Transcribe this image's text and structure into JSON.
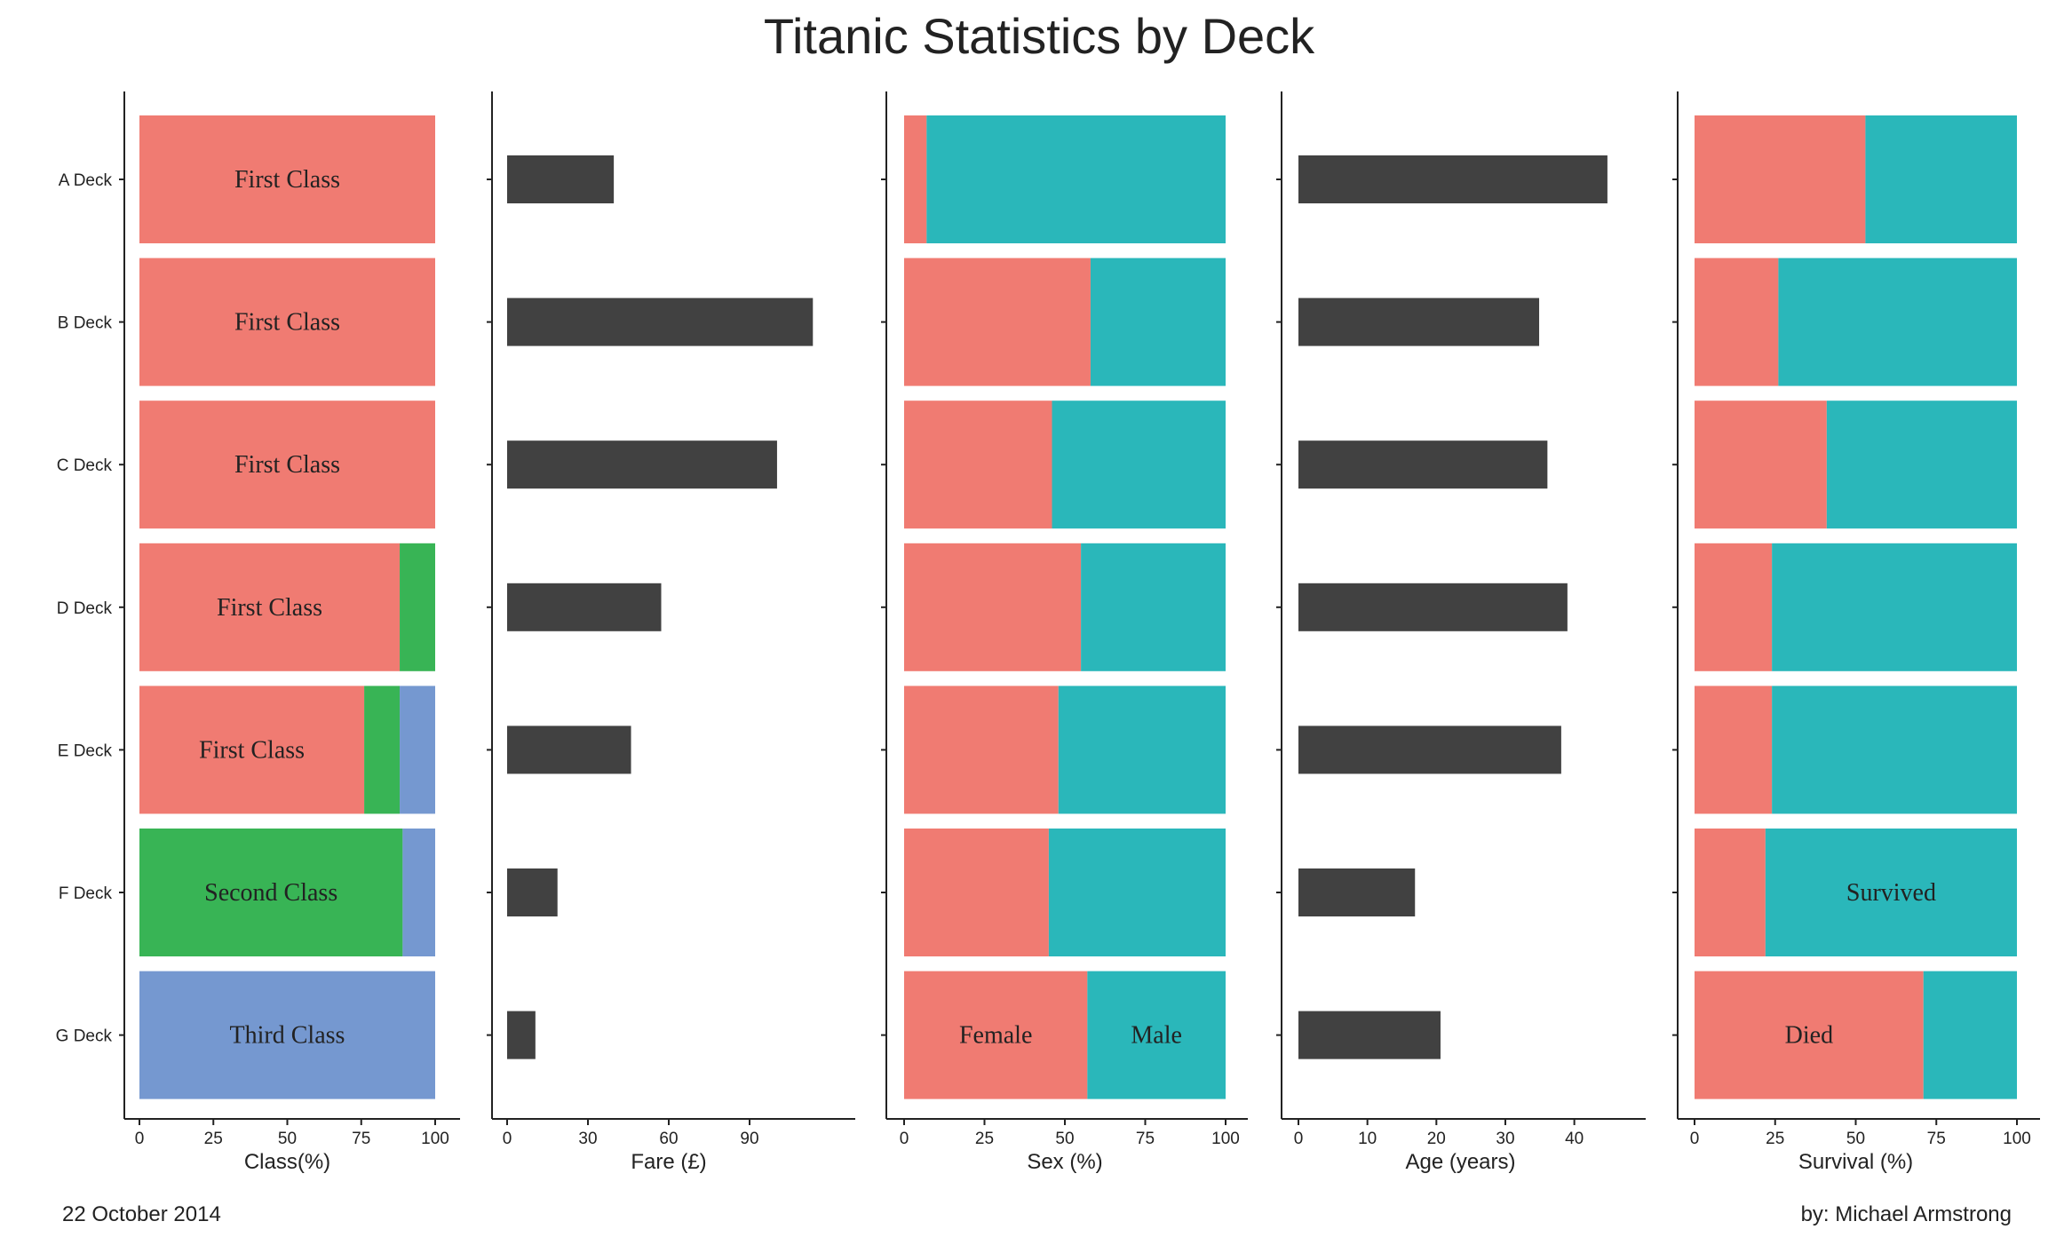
{
  "title": "Titanic Statistics by Deck",
  "footer": {
    "date": "22 October 2014",
    "author": "by: Michael Armstrong"
  },
  "decks": [
    "A Deck",
    "B Deck",
    "C Deck",
    "D Deck",
    "E Deck",
    "F Deck",
    "G Deck"
  ],
  "colors": {
    "red": "#F07B72",
    "green": "#38B455",
    "blue": "#7598D0",
    "teal": "#2AB7BA",
    "dark": "#414141"
  },
  "chart_data": [
    {
      "id": "class",
      "type": "bar",
      "stacked": true,
      "orientation": "horizontal",
      "xlabel": "Class(%)",
      "xlim": [
        0,
        100
      ],
      "xticks": [
        "0",
        "25",
        "50",
        "75",
        "100"
      ],
      "categories": [
        "A Deck",
        "B Deck",
        "C Deck",
        "D Deck",
        "E Deck",
        "F Deck",
        "G Deck"
      ],
      "series": [
        {
          "color": "#F07B72",
          "values": [
            100,
            100,
            100,
            88,
            76,
            0,
            0
          ]
        },
        {
          "color": "#38B455",
          "values": [
            0,
            0,
            0,
            12,
            12,
            89,
            0
          ]
        },
        {
          "color": "#7598D0",
          "values": [
            0,
            0,
            0,
            0,
            12,
            11,
            100
          ]
        }
      ],
      "bar_labels": [
        {
          "row": 0,
          "series": 0,
          "text": "First Class"
        },
        {
          "row": 1,
          "series": 0,
          "text": "First Class"
        },
        {
          "row": 2,
          "series": 0,
          "text": "First Class"
        },
        {
          "row": 3,
          "series": 0,
          "text": "First Class"
        },
        {
          "row": 4,
          "series": 0,
          "text": "First Class"
        },
        {
          "row": 5,
          "series": 1,
          "text": "Second Class"
        },
        {
          "row": 6,
          "series": 2,
          "text": "Third Class"
        }
      ]
    },
    {
      "id": "fare",
      "type": "bar",
      "orientation": "horizontal",
      "xlabel": "Fare (£)",
      "xlim": [
        0,
        120
      ],
      "xticks": [
        "0",
        "30",
        "60",
        "90"
      ],
      "categories": [
        "A Deck",
        "B Deck",
        "C Deck",
        "D Deck",
        "E Deck",
        "F Deck",
        "G Deck"
      ],
      "values": [
        39.6,
        113.5,
        100.2,
        57.2,
        46.0,
        18.7,
        10.5
      ],
      "color": "#414141"
    },
    {
      "id": "sex",
      "type": "bar",
      "stacked": true,
      "orientation": "horizontal",
      "xlabel": "Sex (%)",
      "xlim": [
        0,
        100
      ],
      "xticks": [
        "0",
        "25",
        "50",
        "75",
        "100"
      ],
      "categories": [
        "A Deck",
        "B Deck",
        "C Deck",
        "D Deck",
        "E Deck",
        "F Deck",
        "G Deck"
      ],
      "series": [
        {
          "name": "Female",
          "color": "#F07B72",
          "values": [
            7,
            58,
            46,
            55,
            48,
            45,
            57
          ]
        },
        {
          "name": "Male",
          "color": "#2AB7BA",
          "values": [
            93,
            42,
            54,
            45,
            52,
            55,
            43
          ]
        }
      ],
      "bar_labels": [
        {
          "row": 6,
          "series": 0,
          "text": "Female"
        },
        {
          "row": 6,
          "series": 1,
          "text": "Male"
        }
      ]
    },
    {
      "id": "age",
      "type": "bar",
      "orientation": "horizontal",
      "xlabel": "Age (years)",
      "xlim": [
        0,
        47
      ],
      "xticks": [
        "0",
        "10",
        "20",
        "30",
        "40"
      ],
      "categories": [
        "A Deck",
        "B Deck",
        "C Deck",
        "D Deck",
        "E Deck",
        "F Deck",
        "G Deck"
      ],
      "values": [
        44.8,
        34.9,
        36.1,
        39.0,
        38.1,
        16.9,
        20.6
      ],
      "color": "#414141"
    },
    {
      "id": "survival",
      "type": "bar",
      "stacked": true,
      "orientation": "horizontal",
      "xlabel": "Survival (%)",
      "xlim": [
        0,
        100
      ],
      "xticks": [
        "0",
        "25",
        "50",
        "75",
        "100"
      ],
      "categories": [
        "A Deck",
        "B Deck",
        "C Deck",
        "D Deck",
        "E Deck",
        "F Deck",
        "G Deck"
      ],
      "series": [
        {
          "name": "Died",
          "color": "#F07B72",
          "values": [
            53,
            26,
            41,
            24,
            24,
            22,
            71
          ]
        },
        {
          "name": "Survived",
          "color": "#2AB7BA",
          "values": [
            47,
            74,
            59,
            76,
            76,
            78,
            29
          ]
        }
      ],
      "bar_labels": [
        {
          "row": 5,
          "series": 1,
          "text": "Survived"
        },
        {
          "row": 6,
          "series": 0,
          "text": "Died"
        }
      ]
    }
  ]
}
